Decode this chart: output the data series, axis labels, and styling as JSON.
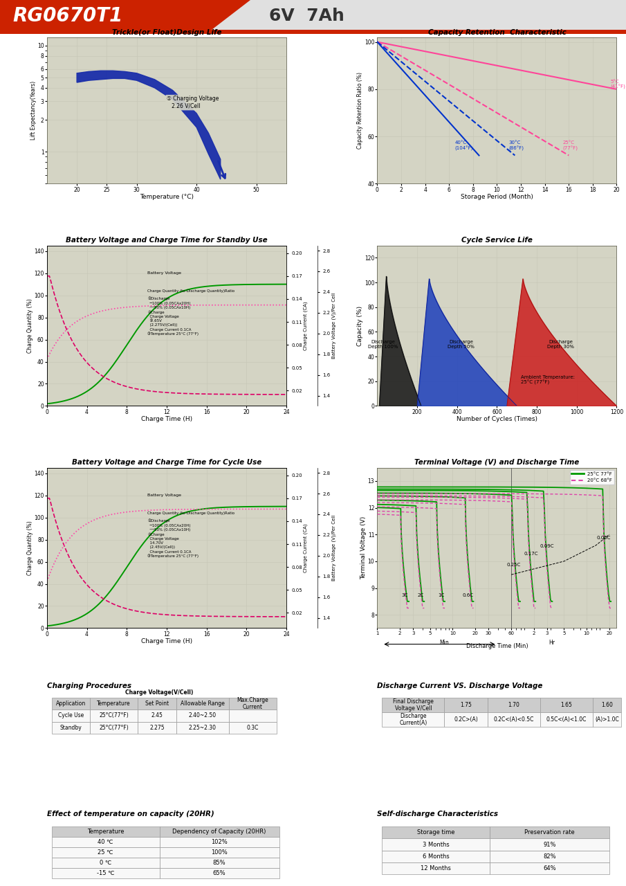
{
  "title_model": "RG0670T1",
  "title_spec": "6V  7Ah",
  "page_bg": "#ffffff",
  "chart_bg": "#d8d8cc",
  "trickle_title": "Trickle(or Float)Design Life",
  "trickle_xlabel": "Temperature (°C)",
  "trickle_ylabel": "Lift Expectancy(Years)",
  "trickle_annotation": "① Charging Voltage\n   2.26 V/Cell",
  "cap_title": "Capacity Retention  Characteristic",
  "cap_xlabel": "Storage Period (Month)",
  "cap_ylabel": "Capacity Retention Ratio (%)",
  "standby_title": "Battery Voltage and Charge Time for Standby Use",
  "standby_xlabel": "Charge Time (H)",
  "cycle_charge_title": "Battery Voltage and Charge Time for Cycle Use",
  "cycle_charge_xlabel": "Charge Time (H)",
  "cycle_life_title": "Cycle Service Life",
  "cycle_life_xlabel": "Number of Cycles (Times)",
  "cycle_life_ylabel": "Capacity (%)",
  "terminal_title": "Terminal Voltage (V) and Discharge Time",
  "terminal_xlabel": "Discharge Time (Min)",
  "terminal_ylabel": "Terminal Voltage (V)",
  "charging_title": "Charging Procedures",
  "discharge_vs_title": "Discharge Current VS. Discharge Voltage",
  "temp_effect_title": "Effect of temperature on capacity (20HR)",
  "self_discharge_title": "Self-discharge Characteristics",
  "temp_table_rows": [
    [
      "40 ℃",
      "102%"
    ],
    [
      "25 ℃",
      "100%"
    ],
    [
      "0 ℃",
      "85%"
    ],
    [
      "-15 ℃",
      "65%"
    ]
  ],
  "self_discharge_rows": [
    [
      "3 Months",
      "91%"
    ],
    [
      "6 Months",
      "82%"
    ],
    [
      "12 Months",
      "64%"
    ]
  ]
}
